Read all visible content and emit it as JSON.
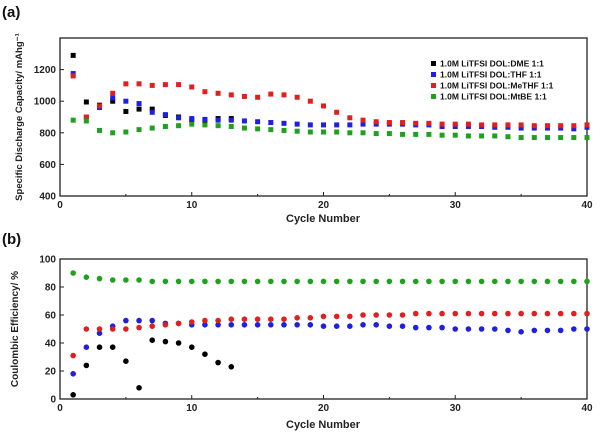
{
  "figure": {
    "panels": [
      {
        "label": "(a)",
        "xlabel": "Cycle Number",
        "ylabel": "Specific Discharge Capacity/ mAhg⁻¹"
      },
      {
        "label": "(b)",
        "xlabel": "Cycle Number",
        "ylabel": "Coulombic Efficiency/ %"
      }
    ]
  },
  "chart_data": [
    {
      "type": "scatter",
      "title": "",
      "panel_label": "(a)",
      "xlabel": "Cycle Number",
      "ylabel": "Specific Discharge Capacity/ mAhg⁻¹",
      "xlim": [
        0,
        40
      ],
      "ylim": [
        400,
        1400
      ],
      "xticks": [
        0,
        10,
        20,
        30,
        40
      ],
      "yticks": [
        400,
        600,
        800,
        1000,
        1200
      ],
      "grid": false,
      "legend_position": "top-right",
      "marker": "square",
      "series": [
        {
          "name": "1.0M LiTFSI DOL:DME 1:1",
          "color": "#000000",
          "x": [
            1,
            2,
            3,
            4,
            5,
            6,
            7,
            8,
            9,
            10,
            11,
            12,
            13
          ],
          "y": [
            1290,
            995,
            975,
            1000,
            935,
            950,
            950,
            910,
            900,
            880,
            875,
            890,
            890
          ]
        },
        {
          "name": "1.0M LiTFSI DOL:THF 1:1",
          "color": "#1f1fe0",
          "x": [
            1,
            2,
            3,
            4,
            5,
            6,
            7,
            8,
            9,
            10,
            11,
            12,
            13,
            14,
            15,
            16,
            17,
            18,
            19,
            20,
            21,
            22,
            23,
            24,
            25,
            26,
            27,
            28,
            29,
            30,
            31,
            32,
            33,
            34,
            35,
            36,
            37,
            38,
            39,
            40
          ],
          "y": [
            1175,
            900,
            960,
            1020,
            1000,
            985,
            930,
            915,
            895,
            890,
            885,
            880,
            880,
            875,
            870,
            865,
            860,
            855,
            850,
            850,
            850,
            850,
            855,
            855,
            855,
            855,
            850,
            850,
            840,
            840,
            840,
            840,
            835,
            835,
            830,
            830,
            830,
            830,
            825,
            835
          ]
        },
        {
          "name": "1.0M LiTFSI DOL:MeTHF 1:1",
          "color": "#e01f1f",
          "x": [
            1,
            2,
            3,
            4,
            5,
            6,
            7,
            8,
            9,
            10,
            11,
            12,
            13,
            14,
            15,
            16,
            17,
            18,
            19,
            20,
            21,
            22,
            23,
            24,
            25,
            26,
            27,
            28,
            29,
            30,
            31,
            32,
            33,
            34,
            35,
            36,
            37,
            38,
            39,
            40
          ],
          "y": [
            1160,
            900,
            970,
            1050,
            1110,
            1110,
            1100,
            1105,
            1105,
            1090,
            1060,
            1050,
            1040,
            1030,
            1025,
            1045,
            1040,
            1025,
            1000,
            970,
            930,
            895,
            880,
            870,
            865,
            865,
            860,
            860,
            855,
            855,
            855,
            850,
            850,
            850,
            850,
            845,
            845,
            845,
            845,
            850
          ]
        },
        {
          "name": "1.0M LiTFSI DOL:MtBE 1:1",
          "color": "#1fa01f",
          "x": [
            1,
            2,
            3,
            4,
            5,
            6,
            7,
            8,
            9,
            10,
            11,
            12,
            13,
            14,
            15,
            16,
            17,
            18,
            19,
            20,
            21,
            22,
            23,
            24,
            25,
            26,
            27,
            28,
            29,
            30,
            31,
            32,
            33,
            34,
            35,
            36,
            37,
            38,
            39,
            40
          ],
          "y": [
            880,
            875,
            815,
            800,
            805,
            820,
            830,
            840,
            845,
            855,
            850,
            845,
            840,
            830,
            825,
            820,
            815,
            810,
            805,
            805,
            805,
            800,
            800,
            795,
            795,
            790,
            790,
            790,
            785,
            785,
            780,
            780,
            780,
            775,
            770,
            770,
            770,
            770,
            770,
            770
          ]
        }
      ]
    },
    {
      "type": "scatter",
      "title": "",
      "panel_label": "(b)",
      "xlabel": "Cycle Number",
      "ylabel": "Coulombic Efficiency/ %",
      "xlim": [
        0,
        40
      ],
      "ylim": [
        0,
        100
      ],
      "xticks": [
        0,
        10,
        20,
        30,
        40
      ],
      "yticks": [
        0,
        20,
        40,
        60,
        80,
        100
      ],
      "grid": false,
      "legend_position": "none",
      "marker": "circle",
      "series": [
        {
          "name": "1.0M LiTFSI DOL:DME 1:1",
          "color": "#000000",
          "x": [
            1,
            2,
            3,
            4,
            5,
            6,
            7,
            8,
            9,
            10,
            11,
            12,
            13
          ],
          "y": [
            3,
            24,
            37,
            37,
            27,
            8,
            42,
            41,
            40,
            37,
            32,
            26,
            23
          ]
        },
        {
          "name": "1.0M LiTFSI DOL:THF 1:1",
          "color": "#1f1fe0",
          "x": [
            1,
            2,
            3,
            4,
            5,
            6,
            7,
            8,
            9,
            10,
            11,
            12,
            13,
            14,
            15,
            16,
            17,
            18,
            19,
            20,
            21,
            22,
            23,
            24,
            25,
            26,
            27,
            28,
            29,
            30,
            31,
            32,
            33,
            34,
            35,
            36,
            37,
            38,
            39,
            40
          ],
          "y": [
            18,
            37,
            47,
            52,
            56,
            56,
            56,
            54,
            54,
            53,
            53,
            53,
            53,
            53,
            53,
            53,
            53,
            53,
            53,
            52,
            52,
            52,
            53,
            53,
            52,
            52,
            51,
            51,
            51,
            50,
            50,
            50,
            50,
            49,
            48,
            49,
            49,
            49,
            50,
            50
          ]
        },
        {
          "name": "1.0M LiTFSI DOL:MeTHF 1:1",
          "color": "#e01f1f",
          "x": [
            1,
            2,
            3,
            4,
            5,
            6,
            7,
            8,
            9,
            10,
            11,
            12,
            13,
            14,
            15,
            16,
            17,
            18,
            19,
            20,
            21,
            22,
            23,
            24,
            25,
            26,
            27,
            28,
            29,
            30,
            31,
            32,
            33,
            34,
            35,
            36,
            37,
            38,
            39,
            40
          ],
          "y": [
            31,
            50,
            50,
            50,
            50,
            51,
            52,
            53,
            54,
            55,
            56,
            56,
            57,
            57,
            57,
            57,
            57,
            58,
            58,
            59,
            59,
            59,
            60,
            60,
            60,
            60,
            61,
            61,
            61,
            61,
            61,
            61,
            61,
            61,
            61,
            61,
            61,
            61,
            61,
            61
          ]
        },
        {
          "name": "1.0M LiTFSI DOL:MtBE 1:1",
          "color": "#1fa01f",
          "x": [
            1,
            2,
            3,
            4,
            5,
            6,
            7,
            8,
            9,
            10,
            11,
            12,
            13,
            14,
            15,
            16,
            17,
            18,
            19,
            20,
            21,
            22,
            23,
            24,
            25,
            26,
            27,
            28,
            29,
            30,
            31,
            32,
            33,
            34,
            35,
            36,
            37,
            38,
            39,
            40
          ],
          "y": [
            90,
            87,
            86,
            85,
            85,
            85,
            84,
            84,
            84,
            84,
            84,
            84,
            84,
            84,
            84,
            84,
            84,
            84,
            84,
            84,
            84,
            84,
            84,
            84,
            84,
            84,
            84,
            84,
            84,
            84,
            84,
            84,
            84,
            84,
            84,
            84,
            84,
            84,
            84,
            84
          ]
        }
      ]
    }
  ]
}
